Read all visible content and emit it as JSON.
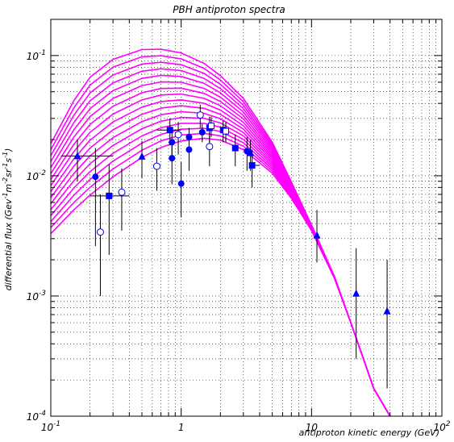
{
  "chart_data": {
    "type": "line",
    "title": "PBH antiproton spectra",
    "xlabel": "antiproton kinetic energy (GeV)",
    "ylabel_parts": [
      {
        "t": "differential flux (Gev"
      },
      {
        "t": "-1",
        "sup": true
      },
      {
        "t": "m"
      },
      {
        "t": "-2",
        "sup": true
      },
      {
        "t": "sr"
      },
      {
        "t": "-1",
        "sup": true
      },
      {
        "t": "s"
      },
      {
        "t": "-1",
        "sup": true
      },
      {
        "t": ")"
      }
    ],
    "x_scale": "log",
    "y_scale": "log",
    "xlim": [
      0.1,
      100
    ],
    "ylim": [
      0.0001,
      0.2
    ],
    "grid": true,
    "x_tick_labels": [
      {
        "v": 0.1,
        "base": "10",
        "exp": "-1"
      },
      {
        "v": 1,
        "base": "1",
        "exp": ""
      },
      {
        "v": 10,
        "base": "10",
        "exp": ""
      },
      {
        "v": 100,
        "base": "10",
        "exp": "2"
      }
    ],
    "y_tick_labels": [
      {
        "v": 0.0001,
        "base": "10",
        "exp": "-4"
      },
      {
        "v": 0.001,
        "base": "10",
        "exp": "-3"
      },
      {
        "v": 0.01,
        "base": "10",
        "exp": "-2"
      },
      {
        "v": 0.1,
        "base": "10",
        "exp": "-1"
      }
    ],
    "curve_color": "#ff00ff",
    "marker_color": "#0000ff",
    "curves": {
      "count": 16,
      "x": [
        0.1,
        0.15,
        0.2,
        0.3,
        0.5,
        0.7,
        1,
        1.5,
        2,
        3,
        5,
        7,
        10,
        15,
        20,
        30,
        40
      ],
      "peak_values": [
        0.115,
        0.098,
        0.086,
        0.075,
        0.065,
        0.057,
        0.051,
        0.046,
        0.042,
        0.038,
        0.035,
        0.032,
        0.029,
        0.027,
        0.025,
        0.023
      ],
      "lowest_curve": [
        0.0033,
        0.0052,
        0.0069,
        0.0098,
        0.0142,
        0.0172,
        0.0195,
        0.0205,
        0.0198,
        0.0165,
        0.0105,
        0.0065,
        0.0035,
        0.0014,
        0.0006,
        0.00017,
        0.0001
      ],
      "highest_curve": [
        0.0185,
        0.042,
        0.066,
        0.093,
        0.112,
        0.113,
        0.105,
        0.086,
        0.068,
        0.044,
        0.019,
        0.0089,
        0.0039,
        0.00145,
        0.0006,
        0.00017,
        0.0001
      ]
    },
    "datasets": [
      {
        "marker": "filled-circle",
        "points": [
          {
            "x": 0.22,
            "y": 0.0098,
            "ylo": 0.0026,
            "yhi": 0.017
          },
          {
            "x": 0.85,
            "y": 0.014,
            "ylo": 0.0085,
            "yhi": 0.02
          },
          {
            "x": 0.85,
            "y": 0.019,
            "ylo": 0.013,
            "yhi": 0.025
          },
          {
            "x": 1.0,
            "y": 0.0086,
            "ylo": 0.0045,
            "yhi": 0.013
          },
          {
            "x": 1.15,
            "y": 0.0165,
            "ylo": 0.011,
            "yhi": 0.022
          },
          {
            "x": 1.15,
            "y": 0.021,
            "ylo": 0.017,
            "yhi": 0.025
          },
          {
            "x": 1.45,
            "y": 0.023,
            "ylo": 0.019,
            "yhi": 0.027
          },
          {
            "x": 3.2,
            "y": 0.016,
            "ylo": 0.011,
            "yhi": 0.021
          }
        ]
      },
      {
        "marker": "open-circle",
        "points": [
          {
            "x": 0.24,
            "y": 0.0034,
            "ylo": 0.001,
            "yhi": 0.007
          },
          {
            "x": 0.35,
            "y": 0.0073,
            "ylo": 0.0035,
            "yhi": 0.0115
          },
          {
            "x": 0.65,
            "y": 0.012,
            "ylo": 0.0075,
            "yhi": 0.017
          },
          {
            "x": 0.95,
            "y": 0.022,
            "ylo": 0.015,
            "yhi": 0.028
          },
          {
            "x": 1.4,
            "y": 0.032,
            "ylo": 0.025,
            "yhi": 0.039
          },
          {
            "x": 1.65,
            "y": 0.0175,
            "ylo": 0.012,
            "yhi": 0.023
          }
        ]
      },
      {
        "marker": "filled-square",
        "points": [
          {
            "x": 0.28,
            "y": 0.0068,
            "ylo": 0.0022,
            "yhi": 0.0125,
            "xlo": 0.2,
            "xhi": 0.4
          },
          {
            "x": 0.82,
            "y": 0.024,
            "ylo": 0.018,
            "yhi": 0.03,
            "xlo": 0.65,
            "xhi": 1.0
          },
          {
            "x": 1.65,
            "y": 0.025,
            "ylo": 0.019,
            "yhi": 0.031
          },
          {
            "x": 2.1,
            "y": 0.024,
            "ylo": 0.019,
            "yhi": 0.029
          },
          {
            "x": 2.6,
            "y": 0.017,
            "ylo": 0.012,
            "yhi": 0.022
          },
          {
            "x": 3.5,
            "y": 0.0122,
            "ylo": 0.008,
            "yhi": 0.0165,
            "xhi": 4.0
          }
        ]
      },
      {
        "marker": "open-square",
        "points": [
          {
            "x": 1.7,
            "y": 0.026,
            "ylo": 0.021,
            "yhi": 0.031
          },
          {
            "x": 2.2,
            "y": 0.0235,
            "ylo": 0.019,
            "yhi": 0.028
          }
        ]
      },
      {
        "marker": "filled-triangle",
        "points": [
          {
            "x": 0.16,
            "y": 0.0146,
            "ylo": 0.009,
            "yhi": 0.02,
            "xlo": 0.12,
            "xhi": 0.3
          },
          {
            "x": 0.5,
            "y": 0.0145,
            "ylo": 0.0095,
            "yhi": 0.0195
          },
          {
            "x": 3.4,
            "y": 0.0155,
            "ylo": 0.011,
            "yhi": 0.02
          },
          {
            "x": 11,
            "y": 0.0032,
            "ylo": 0.0019,
            "yhi": 0.0052
          },
          {
            "x": 22,
            "y": 0.00105,
            "ylo": 0.0003,
            "yhi": 0.0025
          },
          {
            "x": 38,
            "y": 0.00075,
            "ylo": 0.00017,
            "yhi": 0.002
          }
        ]
      }
    ]
  }
}
